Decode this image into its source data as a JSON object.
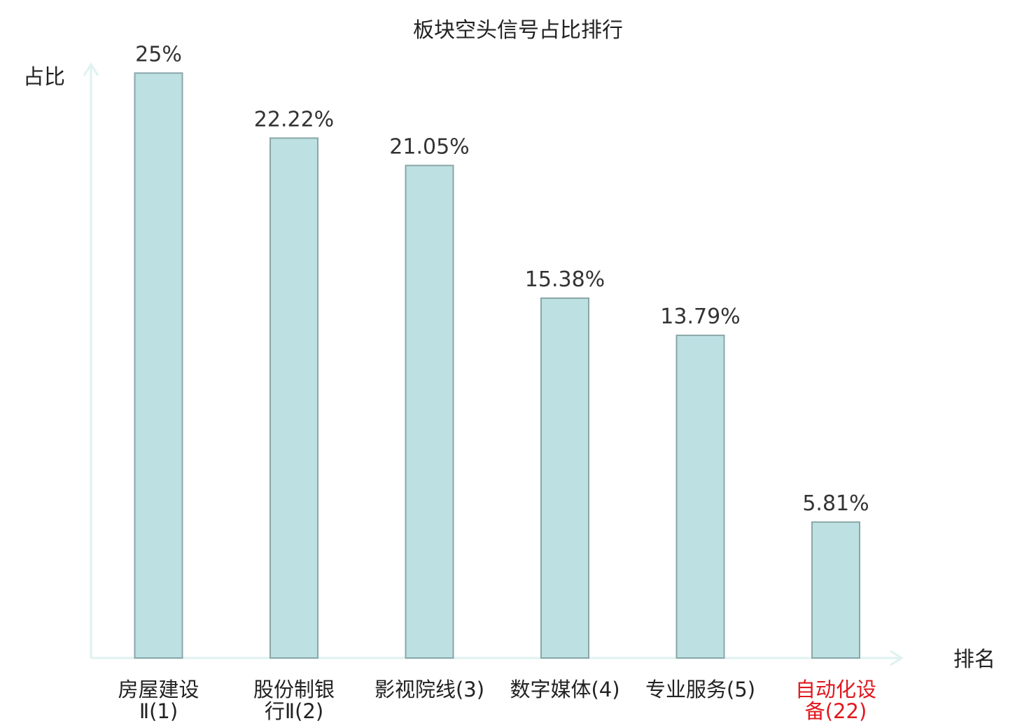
{
  "chart_data": {
    "type": "bar",
    "title": "板块空头信号占比排行",
    "ylabel": "占比",
    "xlabel": "排名",
    "ylim": [
      0,
      25.4
    ],
    "grid": false,
    "categories": [
      {
        "lines": [
          "房屋建设",
          "Ⅱ(1)"
        ],
        "highlight": false
      },
      {
        "lines": [
          "股份制银",
          "行Ⅱ(2)"
        ],
        "highlight": false
      },
      {
        "lines": [
          "影视院线(3)"
        ],
        "highlight": false
      },
      {
        "lines": [
          "数字媒体(4)"
        ],
        "highlight": false
      },
      {
        "lines": [
          "专业服务(5)"
        ],
        "highlight": false
      },
      {
        "lines": [
          "自动化设",
          "备(22)"
        ],
        "highlight": true
      }
    ],
    "values": [
      25,
      22.22,
      21.05,
      15.38,
      13.79,
      5.81
    ],
    "value_labels": [
      "25%",
      "22.22%",
      "21.05%",
      "15.38%",
      "13.79%",
      "5.81%"
    ],
    "colors": {
      "bar_fill": "#bde0e3",
      "bar_stroke": "#8aa6a8",
      "axis": "#dff2ef",
      "highlight_text": "#e0181f",
      "normal_text": "#222222"
    }
  }
}
